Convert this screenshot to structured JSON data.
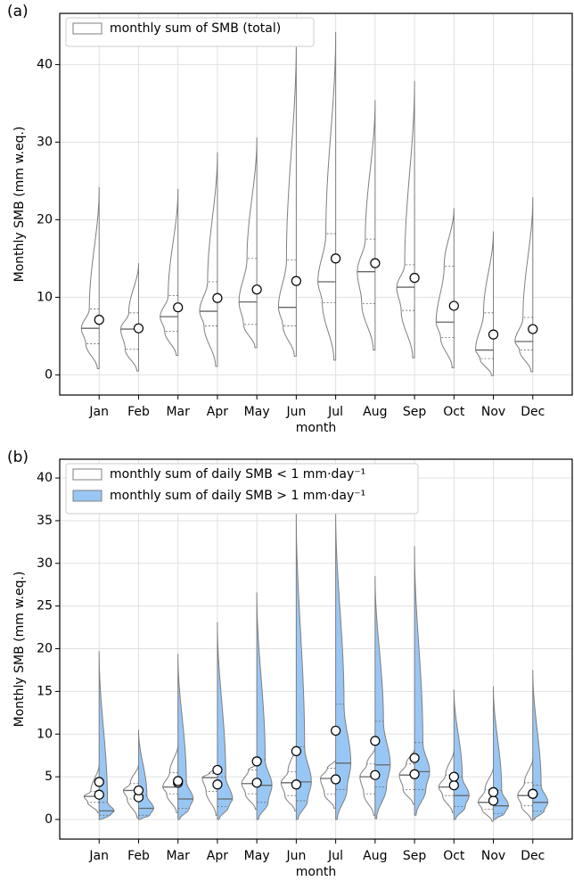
{
  "chart_data": [
    {
      "type": "violin",
      "panel_label": "(a)",
      "ylabel": "Monthly SMB (mm w.eq.)",
      "xlabel": "month",
      "categories": [
        "Jan",
        "Feb",
        "Mar",
        "Apr",
        "May",
        "Jun",
        "Jul",
        "Aug",
        "Sep",
        "Oct",
        "Nov",
        "Dec"
      ],
      "ylim": [
        -2.6,
        46.6
      ],
      "yticks": [
        0,
        10,
        20,
        30,
        40
      ],
      "grid": true,
      "legend": "upper left",
      "series": [
        {
          "name": "monthly sum of SMB (total)",
          "color": "#ffffff",
          "max": [
            24.2,
            14.4,
            24.0,
            28.7,
            30.6,
            43.0,
            44.2,
            35.4,
            37.9,
            21.5,
            18.5,
            22.9
          ],
          "q3": [
            8.5,
            8.0,
            10.2,
            12.0,
            15.0,
            14.8,
            18.2,
            17.5,
            14.2,
            14.0,
            8.0,
            7.4
          ],
          "median": [
            6.0,
            5.9,
            7.5,
            8.2,
            9.4,
            8.7,
            12.0,
            13.3,
            11.3,
            6.8,
            3.2,
            4.3
          ],
          "q1": [
            4.0,
            3.3,
            5.6,
            6.3,
            6.5,
            6.3,
            9.3,
            9.2,
            8.3,
            4.8,
            2.1,
            3.2
          ],
          "min": [
            0.8,
            0.5,
            2.5,
            1.1,
            3.5,
            2.4,
            1.9,
            3.2,
            2.2,
            0.9,
            -0.1,
            0.4
          ],
          "mean": [
            7.1,
            6.0,
            8.7,
            9.9,
            11.0,
            12.1,
            15.0,
            14.4,
            12.5,
            8.9,
            5.2,
            5.9
          ]
        }
      ]
    },
    {
      "type": "violin",
      "panel_label": "(b)",
      "ylabel": "Monthly SMB (mm w.eq.)",
      "xlabel": "month",
      "categories": [
        "Jan",
        "Feb",
        "Mar",
        "Apr",
        "May",
        "Jun",
        "Jul",
        "Aug",
        "Sep",
        "Oct",
        "Nov",
        "Dec"
      ],
      "ylim": [
        -2.3,
        42.2
      ],
      "yticks": [
        0,
        5,
        10,
        15,
        20,
        25,
        30,
        35,
        40
      ],
      "grid": true,
      "legend": "upper left",
      "series": [
        {
          "name": "monthly sum of daily SMB < 1 mm·day⁻¹",
          "color": "#ffffff",
          "max": [
            6.5,
            6.5,
            8.8,
            6.0,
            6.5,
            8.8,
            7.0,
            8.5,
            8.3,
            8.2,
            6.2,
            7.2
          ],
          "q3": [
            3.3,
            4.2,
            5.5,
            5.4,
            5.8,
            5.6,
            6.0,
            6.5,
            6.5,
            5.2,
            3.5,
            4.3
          ],
          "median": [
            2.7,
            3.4,
            3.8,
            4.9,
            4.2,
            4.3,
            4.8,
            5.0,
            5.2,
            3.8,
            2.0,
            2.8
          ],
          "q1": [
            2.0,
            2.4,
            3.0,
            3.3,
            3.0,
            2.8,
            3.0,
            3.0,
            3.5,
            2.8,
            1.2,
            1.6
          ],
          "min": [
            0.8,
            0.2,
            0.8,
            0.5,
            1.2,
            1.0,
            1.3,
            0.5,
            1.8,
            0.8,
            -0.2,
            -0.1
          ],
          "mean": [
            2.9,
            2.6,
            4.3,
            4.1,
            4.3,
            4.1,
            4.7,
            5.2,
            5.3,
            4.0,
            2.2,
            3.0
          ]
        },
        {
          "name": "monthly sum of daily SMB > 1 mm·day⁻¹",
          "color": "#99c7f5",
          "max": [
            19.7,
            10.5,
            19.4,
            23.1,
            26.6,
            36.0,
            36.2,
            28.5,
            32.0,
            15.2,
            15.6,
            17.5
          ],
          "q3": [
            2.0,
            2.8,
            4.5,
            5.0,
            7.0,
            8.5,
            13.5,
            11.5,
            9.0,
            5.0,
            3.4,
            4.0
          ],
          "median": [
            1.0,
            1.3,
            2.4,
            2.4,
            4.0,
            4.4,
            6.6,
            6.4,
            5.6,
            2.8,
            1.6,
            2.0
          ],
          "q1": [
            0.5,
            0.5,
            1.3,
            1.5,
            2.0,
            2.2,
            3.5,
            3.8,
            3.5,
            1.5,
            0.7,
            1.0
          ],
          "min": [
            0.0,
            0.0,
            0.0,
            0.0,
            0.0,
            0.0,
            0.0,
            0.1,
            0.5,
            0.0,
            0.0,
            0.0
          ],
          "mean": [
            4.4,
            3.4,
            4.5,
            5.8,
            6.8,
            8.0,
            10.4,
            9.2,
            7.2,
            5.0,
            3.2,
            3.0
          ]
        }
      ]
    }
  ]
}
